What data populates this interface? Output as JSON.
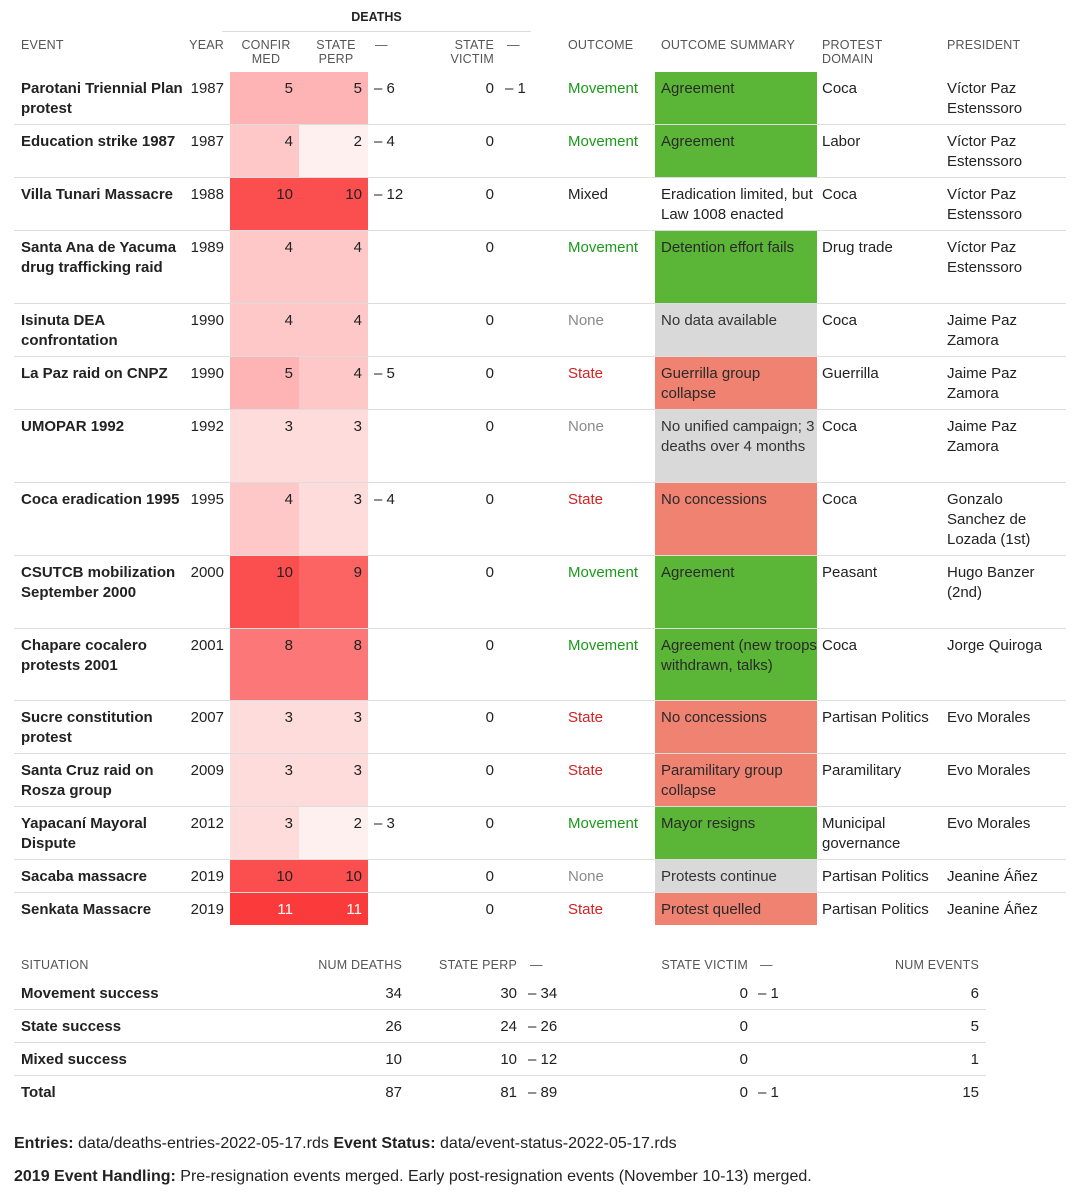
{
  "table": {
    "group_header": "DEATHS",
    "headers": {
      "event": "EVENT",
      "year": "YEAR",
      "confirmed": "CONFIR\nMED",
      "state_perp": "STATE\nPERP",
      "state_perp_range": "—",
      "state_victim": "STATE\nVICTIM",
      "state_victim_range": "—",
      "outcome": "OUTCOME",
      "outcome_summary": "OUTCOME SUMMARY",
      "protest_domain": "PROTEST\nDOMAIN",
      "president": "PRESIDENT"
    },
    "rows": [
      {
        "event": "Parotani Triennial Plan protest",
        "year": "1987",
        "confirmed": "5",
        "state_perp": "5",
        "state_perp_range": "– 6",
        "state_victim": "0",
        "state_victim_range": "– 1",
        "outcome": "Movement",
        "summary": "Agreement",
        "domain": "Coca",
        "president": "Víctor Paz Estenssoro"
      },
      {
        "event": "Education strike 1987",
        "year": "1987",
        "confirmed": "4",
        "state_perp": "2",
        "state_perp_range": "– 4",
        "state_victim": "0",
        "state_victim_range": "",
        "outcome": "Movement",
        "summary": "Agreement",
        "domain": "Labor",
        "president": "Víctor Paz Estenssoro"
      },
      {
        "event": "Villa Tunari Massacre",
        "year": "1988",
        "confirmed": "10",
        "state_perp": "10",
        "state_perp_range": "– 12",
        "state_victim": "0",
        "state_victim_range": "",
        "outcome": "Mixed",
        "summary": "Eradication limited, but Law 1008 enacted",
        "domain": "Coca",
        "president": "Víctor Paz Estenssoro"
      },
      {
        "event": "Santa Ana de Yacuma drug trafficking raid",
        "year": "1989",
        "confirmed": "4",
        "state_perp": "4",
        "state_perp_range": "",
        "state_victim": "0",
        "state_victim_range": "",
        "outcome": "Movement",
        "summary": "Detention effort fails",
        "domain": "Drug trade",
        "president": "Víctor Paz Estenssoro"
      },
      {
        "event": "Isinuta DEA confrontation",
        "year": "1990",
        "confirmed": "4",
        "state_perp": "4",
        "state_perp_range": "",
        "state_victim": "0",
        "state_victim_range": "",
        "outcome": "None",
        "summary": "No data available",
        "domain": "Coca",
        "president": "Jaime Paz Zamora"
      },
      {
        "event": "La Paz raid on CNPZ",
        "year": "1990",
        "confirmed": "5",
        "state_perp": "4",
        "state_perp_range": "– 5",
        "state_victim": "0",
        "state_victim_range": "",
        "outcome": "State",
        "summary": "Guerrilla group collapse",
        "domain": "Guerrilla",
        "president": "Jaime Paz Zamora"
      },
      {
        "event": "UMOPAR 1992",
        "year": "1992",
        "confirmed": "3",
        "state_perp": "3",
        "state_perp_range": "",
        "state_victim": "0",
        "state_victim_range": "",
        "outcome": "None",
        "summary": "No unified campaign; 3 deaths over 4 months",
        "domain": "Coca",
        "president": "Jaime Paz Zamora"
      },
      {
        "event": "Coca eradication 1995",
        "year": "1995",
        "confirmed": "4",
        "state_perp": "3",
        "state_perp_range": "– 4",
        "state_victim": "0",
        "state_victim_range": "",
        "outcome": "State",
        "summary": "No concessions",
        "domain": "Coca",
        "president": "Gonzalo Sanchez de Lozada (1st)"
      },
      {
        "event": "CSUTCB mobilization September 2000",
        "year": "2000",
        "confirmed": "10",
        "state_perp": "9",
        "state_perp_range": "",
        "state_victim": "0",
        "state_victim_range": "",
        "outcome": "Movement",
        "summary": "Agreement",
        "domain": "Peasant",
        "president": "Hugo Banzer (2nd)"
      },
      {
        "event": "Chapare cocalero protests 2001",
        "year": "2001",
        "confirmed": "8",
        "state_perp": "8",
        "state_perp_range": "",
        "state_victim": "0",
        "state_victim_range": "",
        "outcome": "Movement",
        "summary": "Agreement (new troops withdrawn, talks)",
        "domain": "Coca",
        "president": "Jorge Quiroga"
      },
      {
        "event": "Sucre constitution protest",
        "year": "2007",
        "confirmed": "3",
        "state_perp": "3",
        "state_perp_range": "",
        "state_victim": "0",
        "state_victim_range": "",
        "outcome": "State",
        "summary": "No concessions",
        "domain": "Partisan Politics",
        "president": "Evo Morales"
      },
      {
        "event": "Santa Cruz raid on Rosza group",
        "year": "2009",
        "confirmed": "3",
        "state_perp": "3",
        "state_perp_range": "",
        "state_victim": "0",
        "state_victim_range": "",
        "outcome": "State",
        "summary": "Paramilitary group collapse",
        "domain": "Paramilitary",
        "president": "Evo Morales"
      },
      {
        "event": "Yapacaní Mayoral Dispute",
        "year": "2012",
        "confirmed": "3",
        "state_perp": "2",
        "state_perp_range": "– 3",
        "state_victim": "0",
        "state_victim_range": "",
        "outcome": "Movement",
        "summary": "Mayor resigns",
        "domain": "Municipal governance",
        "president": "Evo Morales"
      },
      {
        "event": "Sacaba massacre",
        "year": "2019",
        "confirmed": "10",
        "state_perp": "10",
        "state_perp_range": "",
        "state_victim": "0",
        "state_victim_range": "",
        "outcome": "None",
        "summary": "Protests continue",
        "domain": "Partisan Politics",
        "president": "Jeanine Áñez"
      },
      {
        "event": "Senkata Massacre",
        "year": "2019",
        "confirmed": "11",
        "state_perp": "11",
        "state_perp_range": "",
        "state_victim": "0",
        "state_victim_range": "",
        "outcome": "State",
        "summary": "Protest quelled",
        "domain": "Partisan Politics",
        "president": "Jeanine Áñez"
      }
    ]
  },
  "summary": {
    "headers": {
      "situation": "SITUATION",
      "num_deaths": "NUM DEATHS",
      "state_perp": "STATE PERP",
      "state_perp_range": "—",
      "state_victim": "STATE VICTIM",
      "state_victim_range": "—",
      "num_events": "NUM EVENTS"
    },
    "rows": [
      {
        "situation": "Movement success",
        "num_deaths": "34",
        "state_perp": "30",
        "state_perp_range": "– 34",
        "state_victim": "0",
        "state_victim_range": "– 1",
        "num_events": "6"
      },
      {
        "situation": "State success",
        "num_deaths": "26",
        "state_perp": "24",
        "state_perp_range": "– 26",
        "state_victim": "0",
        "state_victim_range": "",
        "num_events": "5"
      },
      {
        "situation": "Mixed success",
        "num_deaths": "10",
        "state_perp": "10",
        "state_perp_range": "– 12",
        "state_victim": "0",
        "state_victim_range": "",
        "num_events": "1"
      },
      {
        "situation": "Total",
        "num_deaths": "87",
        "state_perp": "81",
        "state_perp_range": "– 89",
        "state_victim": "0",
        "state_victim_range": "– 1",
        "num_events": "15"
      }
    ]
  },
  "footer": {
    "entries_label": "Entries:",
    "entries_value": "data/deaths-entries-2022-05-17.rds",
    "status_label": "Event Status:",
    "status_value": "data/event-status-2022-05-17.rds",
    "handling_label": "2019 Event Handling:",
    "handling_value": "Pre-resignation events merged. Early post-resignation events (November 10-13) merged."
  },
  "colors": {
    "text": "#222222",
    "header_text": "#555555",
    "movement": "#1a9a1a",
    "state": "#d62222",
    "none": "#8a8a8a",
    "mixed": "#222222",
    "summary_movement": "#5bb536",
    "summary_state": "#ef8270",
    "summary_none": "#d9d9d9",
    "death_scale_max": "#fb3b3b"
  }
}
